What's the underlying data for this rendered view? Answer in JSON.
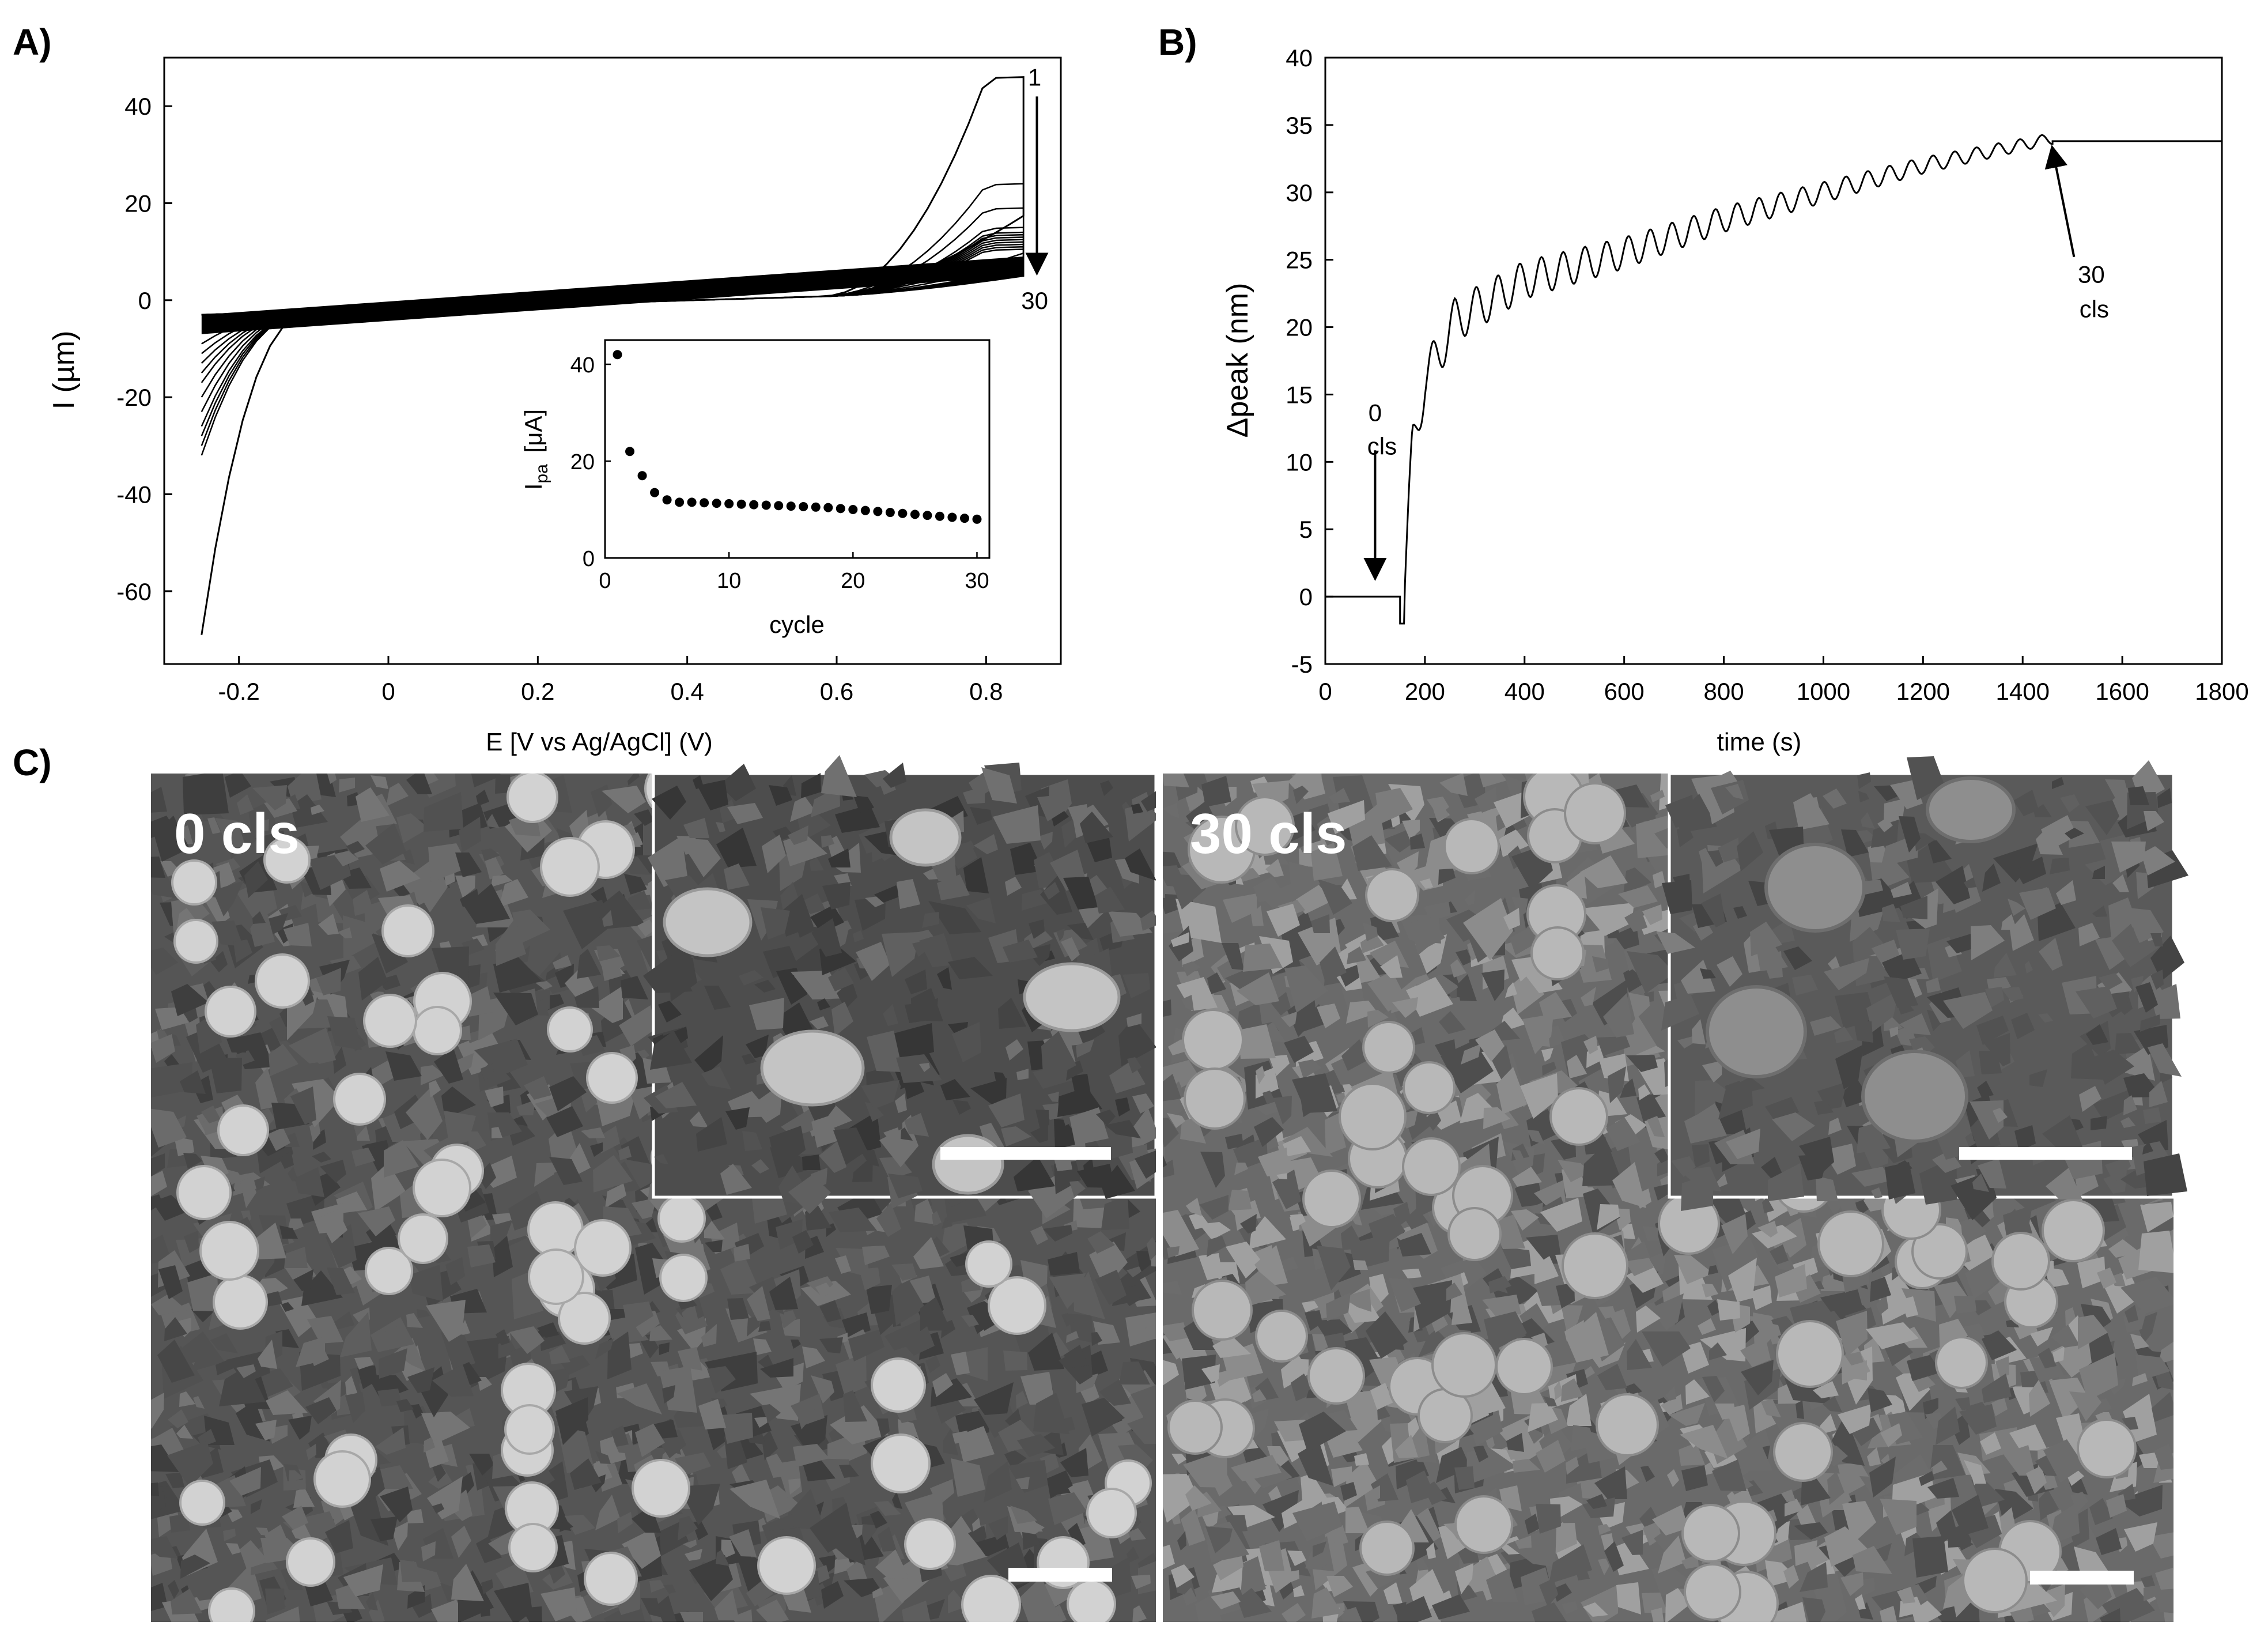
{
  "panels": {
    "a": {
      "letter": "A)"
    },
    "b": {
      "letter": "B)"
    },
    "c": {
      "letter": "C)",
      "left_label": "0 cls",
      "right_label": "30 cls"
    }
  },
  "colors": {
    "line": "#000000",
    "sem_bg": "#555555",
    "sem_particle": "#cfcfcf",
    "scale_bar": "#ffffff"
  },
  "chart_data": [
    {
      "id": "cv",
      "type": "line",
      "xlabel": "E [V vs Ag/AgCl] (V)",
      "ylabel": "I (µm)",
      "xlim": [
        -0.3,
        0.9
      ],
      "ylim": [
        -75,
        50
      ],
      "xticks": [
        -0.2,
        0,
        0.2,
        0.4,
        0.6,
        0.8
      ],
      "xtick_labels": [
        "-0.2",
        "0",
        "0.2",
        "0.4",
        "0.6",
        "0.8"
      ],
      "yticks": [
        -60,
        -40,
        -20,
        0,
        20,
        40
      ],
      "ytick_labels": [
        "-60",
        "-40",
        "-20",
        "0",
        "20",
        "40"
      ],
      "grid": false,
      "annotations": [
        {
          "text": "1",
          "x": 0.865,
          "y": 46
        },
        {
          "text": "30",
          "x": 0.865,
          "y": 0
        }
      ],
      "arrow": {
        "x": 0.868,
        "y_from": 42,
        "y_to": 6
      },
      "series": [
        {
          "cycle": 1,
          "peak": 44,
          "cathodic_min": -66
        },
        {
          "cycle": 2,
          "peak": 22,
          "cathodic_min": -29
        },
        {
          "cycle": 3,
          "peak": 17,
          "cathodic_min": -27
        },
        {
          "cycle": 4,
          "peak": 13,
          "cathodic_min": -25
        },
        {
          "cycle": 5,
          "peak": 12,
          "cathodic_min": -23
        },
        {
          "cycle": 8,
          "peak": 11.5,
          "cathodic_min": -20
        },
        {
          "cycle": 12,
          "peak": 11,
          "cathodic_min": -17
        },
        {
          "cycle": 16,
          "peak": 10.5,
          "cathodic_min": -14
        },
        {
          "cycle": 20,
          "peak": 10,
          "cathodic_min": -12
        },
        {
          "cycle": 24,
          "peak": 9.5,
          "cathodic_min": -10
        },
        {
          "cycle": 27,
          "peak": 9,
          "cathodic_min": -8
        },
        {
          "cycle": 30,
          "peak": 8.5,
          "cathodic_min": -6
        }
      ]
    },
    {
      "id": "inset",
      "type": "scatter",
      "xlabel": "cycle",
      "ylabel": "I",
      "ylabel_sub": "pa",
      "ylabel_unit": "[μA]",
      "xlim": [
        0,
        31
      ],
      "ylim": [
        0,
        45
      ],
      "xticks": [
        0,
        10,
        20,
        30
      ],
      "xtick_labels": [
        "0",
        "10",
        "20",
        "30"
      ],
      "yticks": [
        0,
        20,
        40
      ],
      "ytick_labels": [
        "0",
        "20",
        "40"
      ],
      "x": [
        1,
        2,
        3,
        4,
        5,
        6,
        7,
        8,
        9,
        10,
        11,
        12,
        13,
        14,
        15,
        16,
        17,
        18,
        19,
        20,
        21,
        22,
        23,
        24,
        25,
        26,
        27,
        28,
        29,
        30
      ],
      "y": [
        42,
        22,
        17,
        13.5,
        12,
        11.5,
        11.5,
        11.4,
        11.3,
        11.2,
        11.1,
        11.0,
        10.9,
        10.8,
        10.7,
        10.6,
        10.5,
        10.4,
        10.2,
        10.0,
        9.8,
        9.6,
        9.4,
        9.2,
        9.0,
        8.8,
        8.6,
        8.4,
        8.2,
        8.0
      ]
    },
    {
      "id": "lspr",
      "type": "line",
      "xlabel": "time (s)",
      "ylabel": "Δpeak (nm)",
      "xlim": [
        0,
        1800
      ],
      "ylim": [
        -5,
        40
      ],
      "xticks": [
        0,
        200,
        400,
        600,
        800,
        1000,
        1200,
        1400,
        1600,
        1800
      ],
      "xtick_labels": [
        "0",
        "200",
        "400",
        "600",
        "800",
        "1000",
        "1200",
        "1400",
        "1600",
        "1800"
      ],
      "yticks": [
        -5,
        0,
        5,
        10,
        15,
        20,
        25,
        30,
        35,
        40
      ],
      "ytick_labels": [
        "-5",
        "0",
        "5",
        "10",
        "15",
        "20",
        "25",
        "30",
        "35",
        "40"
      ],
      "grid": false,
      "baseline": {
        "t_end": 150,
        "value": 0
      },
      "cycles": {
        "t_start": 150,
        "t_end": 1460,
        "count": 30,
        "start_dip": -2,
        "amplitude_first": 4,
        "amplitude_last": 0.8
      },
      "plateau": {
        "t_start": 1460,
        "t_end": 1800,
        "value": 33.8
      },
      "trend": [
        [
          155,
          -2
        ],
        [
          175,
          11
        ],
        [
          200,
          16
        ],
        [
          260,
          20.5
        ],
        [
          400,
          23.5
        ],
        [
          600,
          25.5
        ],
        [
          800,
          28
        ],
        [
          1000,
          30
        ],
        [
          1200,
          32
        ],
        [
          1460,
          34
        ]
      ],
      "annotations": [
        {
          "line1": "0",
          "line2": "cls",
          "x": 100,
          "y": 11.5
        },
        {
          "line1": "30",
          "line2": "cls",
          "x": 1480,
          "y": 23.5
        }
      ]
    }
  ]
}
